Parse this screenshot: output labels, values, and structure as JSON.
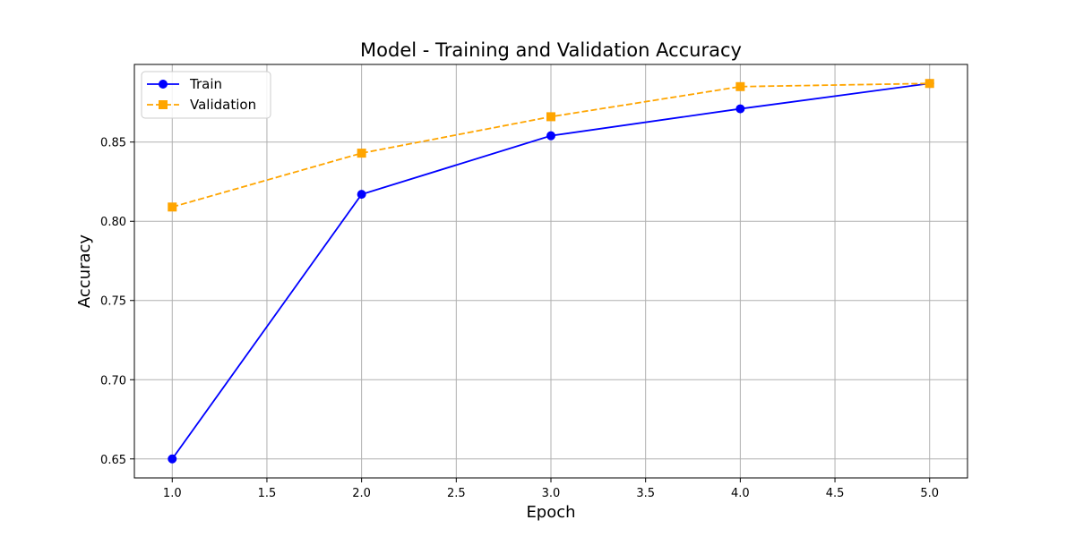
{
  "chart_data": {
    "type": "line",
    "title": "Model - Training and Validation Accuracy",
    "xlabel": "Epoch",
    "ylabel": "Accuracy",
    "x": [
      1.0,
      2.0,
      3.0,
      4.0,
      5.0
    ],
    "series": [
      {
        "name": "Train",
        "values": [
          0.65,
          0.817,
          0.854,
          0.871,
          0.887
        ],
        "color": "#0000ff",
        "marker": "circle",
        "line_style": "solid"
      },
      {
        "name": "Validation",
        "values": [
          0.809,
          0.843,
          0.866,
          0.885,
          0.887
        ],
        "color": "#ffa500",
        "marker": "square",
        "line_style": "dashed"
      }
    ],
    "xlim": [
      0.8,
      5.2
    ],
    "ylim": [
      0.638,
      0.899
    ],
    "xticks": [
      1.0,
      1.5,
      2.0,
      2.5,
      3.0,
      3.5,
      4.0,
      4.5,
      5.0
    ],
    "xtick_labels": [
      "1.0",
      "1.5",
      "2.0",
      "2.5",
      "3.0",
      "3.5",
      "4.0",
      "4.5",
      "5.0"
    ],
    "yticks": [
      0.65,
      0.7,
      0.75,
      0.8,
      0.85
    ],
    "ytick_labels": [
      "0.65",
      "0.70",
      "0.75",
      "0.80",
      "0.85"
    ],
    "grid": true,
    "legend_position": "top-left"
  }
}
